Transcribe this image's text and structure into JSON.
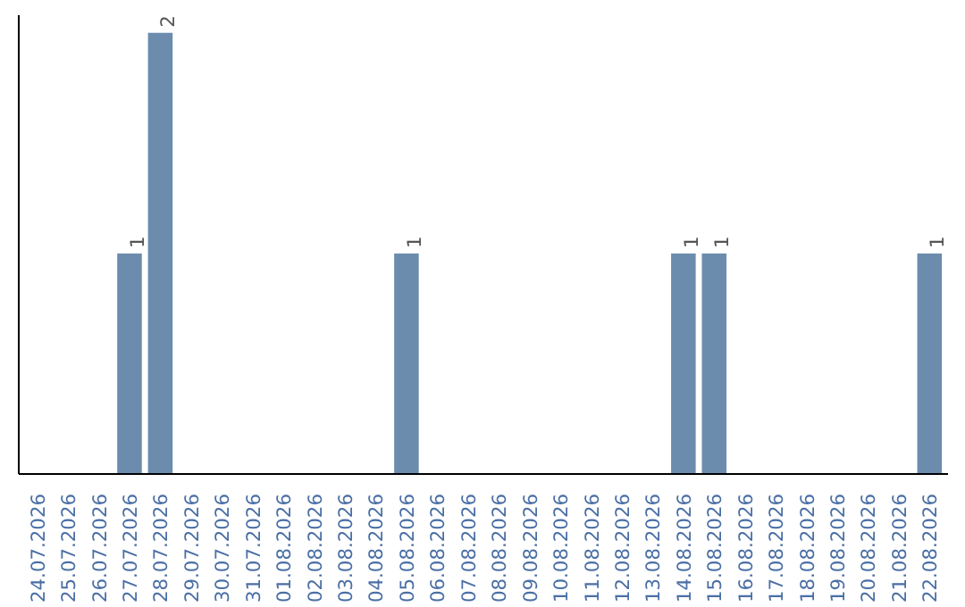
{
  "chart_data": {
    "type": "bar",
    "categories": [
      "24.07.2026",
      "25.07.2026",
      "26.07.2026",
      "27.07.2026",
      "28.07.2026",
      "29.07.2026",
      "30.07.2026",
      "31.07.2026",
      "01.08.2026",
      "02.08.2026",
      "03.08.2026",
      "04.08.2026",
      "05.08.2026",
      "06.08.2026",
      "07.08.2026",
      "08.08.2026",
      "09.08.2026",
      "10.08.2026",
      "11.08.2026",
      "12.08.2026",
      "13.08.2026",
      "14.08.2026",
      "15.08.2026",
      "16.08.2026",
      "17.08.2026",
      "18.08.2026",
      "19.08.2026",
      "20.08.2026",
      "21.08.2026",
      "22.08.2026"
    ],
    "values": [
      0,
      0,
      0,
      1,
      2,
      0,
      0,
      0,
      0,
      0,
      0,
      0,
      1,
      0,
      0,
      0,
      0,
      0,
      0,
      0,
      0,
      1,
      1,
      0,
      0,
      0,
      0,
      0,
      0,
      1
    ],
    "value_labels": [
      null,
      null,
      null,
      "1",
      "2",
      null,
      null,
      null,
      null,
      null,
      null,
      null,
      "1",
      null,
      null,
      null,
      null,
      null,
      null,
      null,
      null,
      "1",
      "1",
      null,
      null,
      null,
      null,
      null,
      null,
      "1"
    ],
    "color": "#6b8cad",
    "grid": false,
    "tick_labels": "x"
  }
}
